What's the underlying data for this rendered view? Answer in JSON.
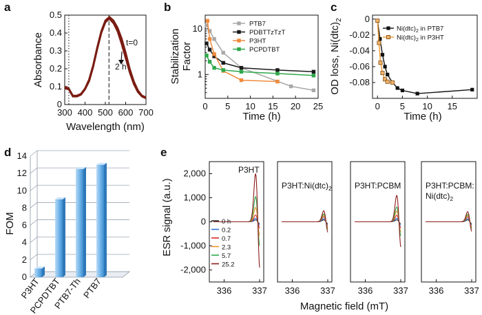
{
  "colors": {
    "absorbance": "#7a1c12",
    "ptb7": "#a8a8a8",
    "pdbttztzt": "#1a1a1a",
    "p3ht": "#f08a3c",
    "pcpdtbt": "#2ea84a",
    "bar": "#6fb3e8",
    "esr_0h": "#2a2a2a",
    "esr_02": "#2a6fd6",
    "esr_07": "#d62828",
    "esr_23": "#f0952a",
    "esr_57": "#2fa84a",
    "esr_252": "#8b1a1a"
  },
  "chart_data": [
    {
      "panel": "a",
      "type": "line",
      "xlabel": "Wavelength (nm)",
      "ylabel": "Absorbance",
      "xlim": [
        300,
        700
      ],
      "ylim": [
        0,
        0.5
      ],
      "xticks": [
        "300",
        "400",
        "500",
        "600",
        "700"
      ],
      "yticks": [
        "0",
        "0.1",
        "0.2",
        "0.3",
        "0.4",
        "0.5"
      ],
      "annotations": [
        "t=0",
        "2 h"
      ],
      "reference_lines_nm": [
        320,
        518
      ],
      "series": [
        {
          "name": "t=0",
          "x": [
            300,
            320,
            340,
            360,
            380,
            400,
            420,
            440,
            460,
            480,
            500,
            520,
            540,
            560,
            580,
            600,
            620,
            640,
            660,
            680,
            700
          ],
          "values": [
            0.1,
            0.09,
            0.05,
            0.05,
            0.06,
            0.09,
            0.14,
            0.22,
            0.32,
            0.41,
            0.47,
            0.49,
            0.47,
            0.43,
            0.37,
            0.29,
            0.2,
            0.13,
            0.08,
            0.05,
            0.04
          ]
        },
        {
          "name": "2 h",
          "x": [
            300,
            320,
            340,
            360,
            380,
            400,
            420,
            440,
            460,
            480,
            500,
            520,
            540,
            560,
            580,
            600,
            620,
            640,
            660,
            680,
            700
          ],
          "values": [
            0.09,
            0.085,
            0.045,
            0.045,
            0.055,
            0.085,
            0.13,
            0.21,
            0.31,
            0.4,
            0.46,
            0.48,
            0.455,
            0.41,
            0.34,
            0.26,
            0.18,
            0.115,
            0.07,
            0.045,
            0.035
          ]
        }
      ]
    },
    {
      "panel": "b",
      "type": "line",
      "xlabel": "Time (h)",
      "ylabel": "Stabilization Factor",
      "ylabel_lines": [
        "Stabilization",
        "Factor"
      ],
      "yscale": "log",
      "xlim": [
        0,
        25
      ],
      "ylim": [
        0.3,
        20
      ],
      "xticks": [
        "0",
        "5",
        "10",
        "15",
        "20",
        "25"
      ],
      "yticks": [
        "1",
        "10"
      ],
      "series": [
        {
          "name": "PTB7",
          "x": [
            0.3,
            1,
            2,
            4,
            8,
            19,
            24
          ],
          "values": [
            12,
            9,
            6,
            3,
            1.4,
            0.55,
            0.45
          ]
        },
        {
          "name": "PDBTTzTzT",
          "x": [
            0.3,
            1,
            2,
            4,
            8,
            16,
            24
          ],
          "values": [
            4.8,
            3.5,
            2.5,
            1.8,
            1.4,
            1.25,
            1.15
          ]
        },
        {
          "name": "P3HT",
          "x": [
            0.5,
            1,
            2,
            4,
            8,
            16
          ],
          "values": [
            15,
            6,
            2.8,
            1.2,
            0.75,
            0.7
          ]
        },
        {
          "name": "PCPDTBT",
          "x": [
            0.3,
            1,
            2,
            4,
            8,
            16,
            24
          ],
          "values": [
            2.6,
            1.9,
            1.4,
            1.25,
            1.15,
            1.05,
            0.95
          ]
        }
      ]
    },
    {
      "panel": "c",
      "type": "line",
      "xlabel": "Time (h)",
      "ylabel": "OD loss, Ni(dtc)2",
      "ylabel_base": "OD loss, Ni(dtc)",
      "ylabel_sub": "2",
      "xlim": [
        -1,
        20
      ],
      "ylim": [
        -0.1,
        0.005
      ],
      "xticks": [
        "0",
        "5",
        "10",
        "15"
      ],
      "yticks": [
        "0",
        "-0.02",
        "-0.04",
        "-0.06",
        "-0.08"
      ],
      "series": [
        {
          "name": "Ni(dtc)2 in PTB7",
          "label_base": "Ni(dtc)",
          "label_sub": "2",
          "label_rest": " in PTB7",
          "x": [
            0,
            0.5,
            1,
            1.5,
            2,
            3,
            4,
            5,
            8,
            19
          ],
          "values": [
            -0.002,
            -0.025,
            -0.045,
            -0.06,
            -0.07,
            -0.08,
            -0.087,
            -0.09,
            -0.094,
            -0.089
          ]
        },
        {
          "name": "Ni(dtc)2 in P3HT",
          "label_base": "Ni(dtc)",
          "label_sub": "2",
          "label_rest": " in P3HT",
          "x": [
            0,
            0.3,
            0.6,
            1,
            1.5,
            2,
            3
          ],
          "values": [
            -0.002,
            -0.03,
            -0.055,
            -0.068,
            -0.076,
            -0.079,
            -0.08
          ]
        }
      ]
    },
    {
      "panel": "d",
      "type": "bar",
      "ylabel": "FOM",
      "categories": [
        "P3HT",
        "PCPDTBT",
        "PTB7-Th",
        "PTB7"
      ],
      "values": [
        1,
        9,
        12.5,
        13
      ],
      "ylim": [
        0,
        14
      ],
      "yticks": [
        "0",
        "2",
        "4",
        "6",
        "8",
        "10",
        "12",
        "14"
      ]
    },
    {
      "panel": "e",
      "type": "line",
      "xlabel": "Magnetic field (mT)",
      "ylabel": "ESR signal (a.u.)",
      "ylim": [
        -2500,
        2500
      ],
      "yticks": [
        "2,000",
        "1,000",
        "0",
        "-1,000",
        "-2,000"
      ],
      "xticks": [
        "336",
        "337"
      ],
      "subplots": [
        {
          "title_lines": [
            "P3HT"
          ],
          "amplitudes": [
            80,
            150,
            280,
            600,
            1050,
            2000
          ]
        },
        {
          "title_lines": [
            "P3HT:Ni(dtc)"
          ],
          "title_sub": "2",
          "amplitudes": [
            80,
            130,
            210,
            280,
            330,
            460
          ]
        },
        {
          "title_lines": [
            "P3HT:PCBM"
          ],
          "amplitudes": [
            80,
            150,
            270,
            450,
            620,
            1100
          ]
        },
        {
          "title_lines": [
            "P3HT:PCBM:",
            "Ni(dtc)"
          ],
          "title_sub": "2",
          "amplitudes": [
            80,
            130,
            200,
            260,
            310,
            420
          ]
        }
      ],
      "legend": [
        "0 h",
        "0.2",
        "0.7",
        "2.3",
        "5.7",
        "25.2"
      ]
    }
  ],
  "panel_letters": [
    "a",
    "b",
    "c",
    "d",
    "e"
  ]
}
